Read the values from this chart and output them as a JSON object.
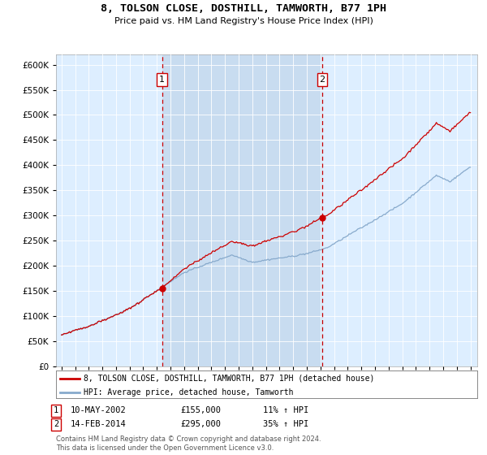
{
  "title": "8, TOLSON CLOSE, DOSTHILL, TAMWORTH, B77 1PH",
  "subtitle": "Price paid vs. HM Land Registry's House Price Index (HPI)",
  "yticks": [
    0,
    50000,
    100000,
    150000,
    200000,
    250000,
    300000,
    350000,
    400000,
    450000,
    500000,
    550000,
    600000
  ],
  "ylim": [
    0,
    620000
  ],
  "xlim_left": 1994.6,
  "xlim_right": 2025.5,
  "sale1_x": 2002.37,
  "sale1_price": 155000,
  "sale2_x": 2014.12,
  "sale2_price": 295000,
  "plot_bg": "#ddeeff",
  "shade_bg": "#c8dcf0",
  "red_color": "#cc0000",
  "blue_color": "#88aacc",
  "legend_line1": "8, TOLSON CLOSE, DOSTHILL, TAMWORTH, B77 1PH (detached house)",
  "legend_line2": "HPI: Average price, detached house, Tamworth",
  "footnote": "Contains HM Land Registry data © Crown copyright and database right 2024.\nThis data is licensed under the Open Government Licence v3.0."
}
